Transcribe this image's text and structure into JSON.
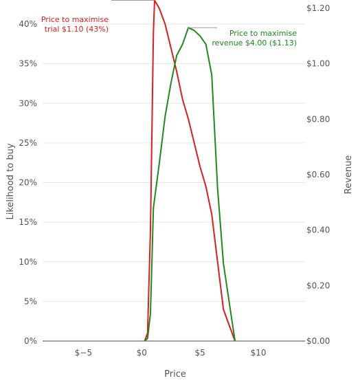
{
  "chart_data": {
    "type": "line",
    "x_label": "Price",
    "y_label": "Likelihood to buy",
    "y2_label": "Revenue",
    "xlim": [
      -8.5,
      14
    ],
    "ylim": [
      0,
      42
    ],
    "y2lim": [
      0,
      1.2
    ],
    "x_ticks": [
      -5,
      0,
      5,
      10
    ],
    "x_tick_labels": [
      "$−5",
      "$0",
      "$5",
      "$10"
    ],
    "y_ticks": [
      0,
      5,
      10,
      15,
      20,
      25,
      30,
      35,
      40
    ],
    "y_tick_labels": [
      "0%",
      "5%",
      "10%",
      "15%",
      "20%",
      "25%",
      "30%",
      "35%",
      "40%"
    ],
    "y2_ticks": [
      0,
      0.2,
      0.4,
      0.6,
      0.8,
      1.0,
      1.2
    ],
    "y2_tick_labels": [
      "$0.00",
      "$0.20",
      "$0.40",
      "$0.60",
      "$0.80",
      "$1.00",
      "$1.20"
    ],
    "grid": true,
    "series": [
      {
        "axis": "left",
        "color": "#e31a1c",
        "x": [
          0.25,
          0.5,
          0.75,
          1.0,
          1.1,
          1.5,
          2.0,
          2.5,
          3.0,
          3.5,
          4.0,
          4.5,
          5.0,
          5.5,
          6.0,
          6.5,
          7.0,
          7.5,
          8.0
        ],
        "y": [
          0,
          1.0,
          14.0,
          39.0,
          43.0,
          42.0,
          40.0,
          37.0,
          34.0,
          30.5,
          28.0,
          25.0,
          22.0,
          19.5,
          16.0,
          10.0,
          4.0,
          2.0,
          0
        ]
      },
      {
        "axis": "right",
        "color": "#1a8a1a",
        "x": [
          0.25,
          0.5,
          0.75,
          1.0,
          1.5,
          2.0,
          2.5,
          3.0,
          3.5,
          4.0,
          4.5,
          5.0,
          5.5,
          6.0,
          6.5,
          7.0,
          7.5,
          8.0
        ],
        "y": [
          0,
          0.01,
          0.1,
          0.48,
          0.64,
          0.81,
          0.93,
          1.03,
          1.07,
          1.13,
          1.12,
          1.1,
          1.07,
          0.96,
          0.55,
          0.28,
          0.14,
          0
        ]
      }
    ],
    "annotations": [
      {
        "lines": [
          "Price to maximise",
          "trial $1.10 (43%)"
        ],
        "color": "#e31a1c",
        "axis": "left",
        "target_x": 1.1,
        "target_y": 43
      },
      {
        "lines": [
          "Price to maximise",
          "revenue $4.00 ($1.13)"
        ],
        "color": "#1a8a1a",
        "axis": "right",
        "target_x": 4.0,
        "target_y": 1.13
      }
    ]
  }
}
